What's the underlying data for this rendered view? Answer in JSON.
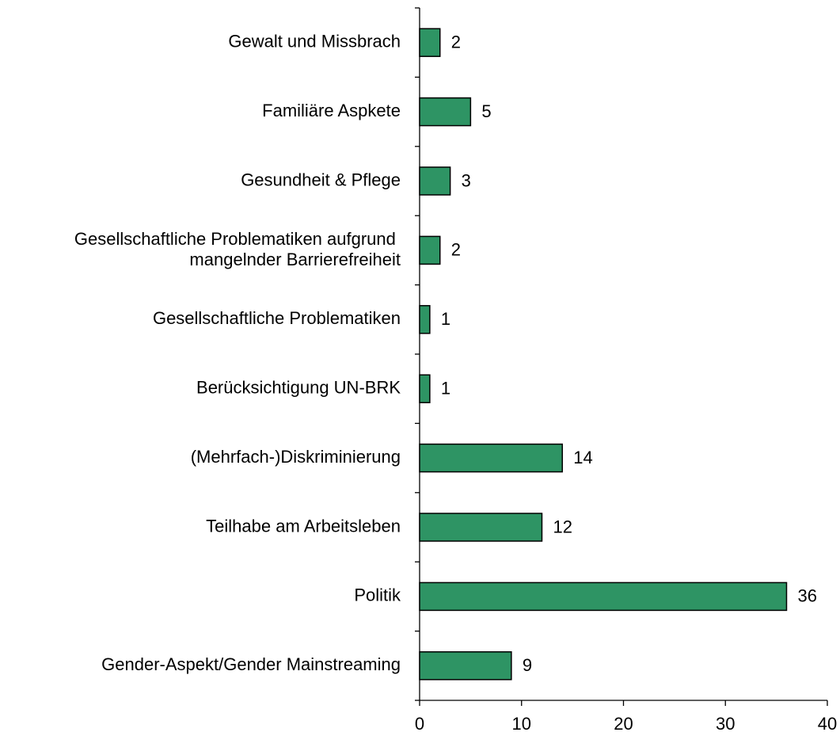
{
  "chart_data": {
    "type": "barh",
    "categories": [
      "Gewalt und Missbrach",
      "Familiäre Aspkete",
      "Gesundheit & Pflege",
      "Gesellschaftliche  Problematiken aufgrund\nmangelnder Barrierefreiheit",
      "Gesellschaftliche  Problematiken ",
      "Berücksichtigung UN-BRK",
      "(Mehrfach-)Diskriminierung",
      "Teilhabe am Arbeitsleben",
      "Politik",
      "Gender-Aspekt/Gender Mainstreaming"
    ],
    "values": [
      2,
      5,
      3,
      2,
      1,
      1,
      14,
      12,
      36,
      9
    ],
    "color": "#2e9464",
    "xlim": [
      0,
      40
    ],
    "xticks": [
      0,
      10,
      20,
      30,
      40
    ],
    "grid": false
  }
}
